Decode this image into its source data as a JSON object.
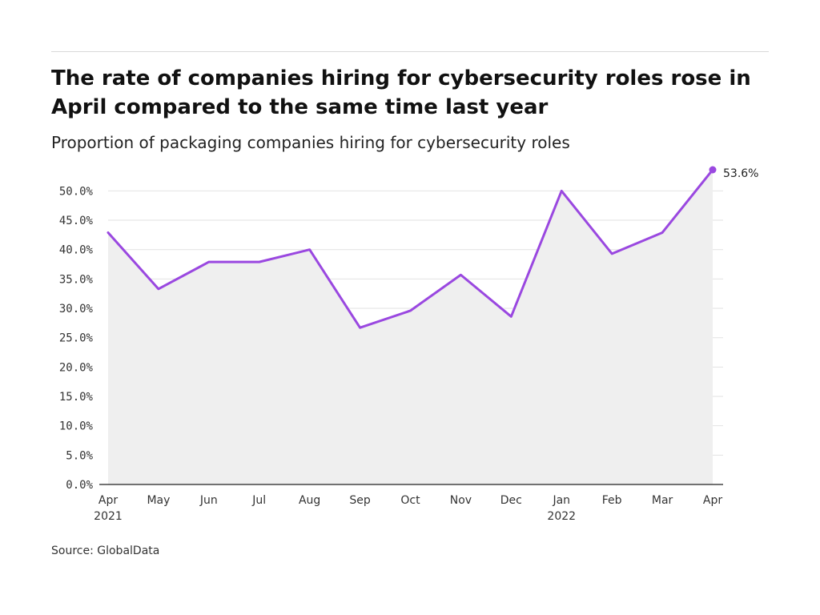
{
  "header": {
    "title": "The rate of companies hiring for cybersecurity roles rose in April compared to the same time last year",
    "subtitle": "Proportion of packaging companies hiring for cybersecurity roles"
  },
  "footer": {
    "source": "Source: GlobalData"
  },
  "colors": {
    "line": "#9a48e0",
    "area": "#efefef",
    "grid": "#e2e2e2",
    "axis": "#222222"
  },
  "chart_data": {
    "type": "line",
    "title": "The rate of companies hiring for cybersecurity roles rose in April compared to the same time last year",
    "subtitle": "Proportion of packaging companies hiring for cybersecurity roles",
    "xlabel": "",
    "ylabel": "",
    "categories": [
      "Apr",
      "May",
      "Jun",
      "Jul",
      "Aug",
      "Sep",
      "Oct",
      "Nov",
      "Dec",
      "Jan",
      "Feb",
      "Mar",
      "Apr"
    ],
    "category_years": [
      "2021",
      "",
      "",
      "",
      "",
      "",
      "",
      "",
      "",
      "2022",
      "",
      "",
      ""
    ],
    "series": [
      {
        "values": [
          42.9,
          33.3,
          37.9,
          37.9,
          40.0,
          26.7,
          29.6,
          35.7,
          28.6,
          50.0,
          39.3,
          42.9,
          53.6
        ]
      }
    ],
    "ylim": [
      0,
      53.6
    ],
    "yticks": [
      0,
      5,
      10,
      15,
      20,
      25,
      30,
      35,
      40,
      45,
      50
    ],
    "ytick_labels": [
      "0.0%",
      "5.0%",
      "10.0%",
      "15.0%",
      "20.0%",
      "25.0%",
      "30.0%",
      "35.0%",
      "40.0%",
      "45.0%",
      "50.0%"
    ],
    "annotations": [
      {
        "index": 12,
        "text": "53.6%"
      }
    ],
    "grid": true,
    "area_fill": true,
    "legend": "none"
  }
}
